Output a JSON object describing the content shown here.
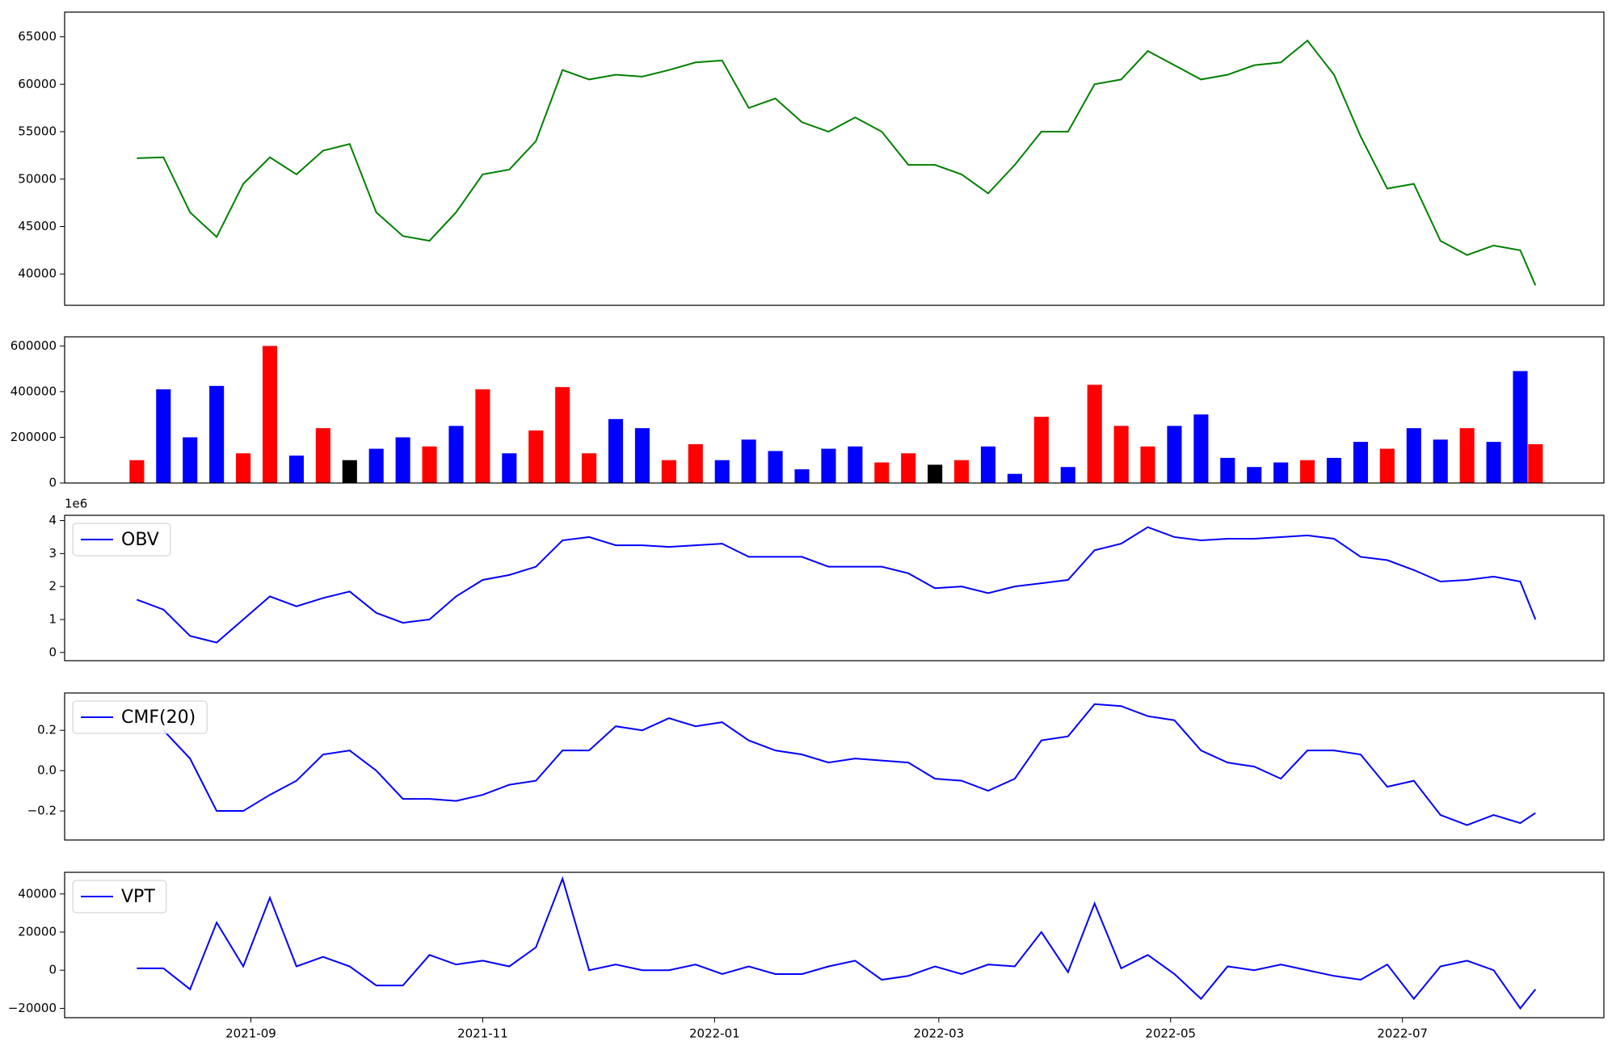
{
  "chart_data": [
    {
      "type": "line",
      "x": [
        "2021-08-02",
        "2021-08-09",
        "2021-08-16",
        "2021-08-23",
        "2021-08-30",
        "2021-09-06",
        "2021-09-13",
        "2021-09-20",
        "2021-09-27",
        "2021-10-04",
        "2021-10-11",
        "2021-10-18",
        "2021-10-25",
        "2021-11-01",
        "2021-11-08",
        "2021-11-15",
        "2021-11-22",
        "2021-11-29",
        "2021-12-06",
        "2021-12-13",
        "2021-12-20",
        "2021-12-27",
        "2022-01-03",
        "2022-01-10",
        "2022-01-17",
        "2022-01-24",
        "2022-01-31",
        "2022-02-07",
        "2022-02-14",
        "2022-02-21",
        "2022-02-28",
        "2022-03-07",
        "2022-03-14",
        "2022-03-21",
        "2022-03-28",
        "2022-04-04",
        "2022-04-11",
        "2022-04-18",
        "2022-04-25",
        "2022-05-02",
        "2022-05-09",
        "2022-05-16",
        "2022-05-23",
        "2022-05-30",
        "2022-06-06",
        "2022-06-13",
        "2022-06-20",
        "2022-06-27",
        "2022-07-04",
        "2022-07-11",
        "2022-07-18",
        "2022-07-25",
        "2022-08-01",
        "2022-08-05"
      ],
      "xlim": [
        "2021-07-14",
        "2022-08-23"
      ],
      "series": [
        {
          "color": "#008000",
          "values": [
            52200,
            52300,
            46500,
            43900,
            49500,
            52300,
            50500,
            53000,
            53700,
            46500,
            44000,
            43500,
            46500,
            50500,
            51000,
            54000,
            61500,
            60500,
            61000,
            60800,
            61500,
            62300,
            62500,
            57500,
            58500,
            56000,
            55000,
            56500,
            55000,
            51500,
            51500,
            50500,
            48500,
            51500,
            55000,
            55000,
            60000,
            60500,
            63500,
            62000,
            60500,
            61000,
            62000,
            62300,
            64600,
            61000,
            54500,
            49000,
            49500,
            43500,
            42000,
            43000,
            42500,
            38800
          ]
        }
      ],
      "ylim": [
        36700,
        67600
      ],
      "yticks": [
        40000,
        45000,
        50000,
        55000,
        60000,
        65000
      ]
    },
    {
      "type": "bar",
      "x": [
        "2021-08-02",
        "2021-08-09",
        "2021-08-16",
        "2021-08-23",
        "2021-08-30",
        "2021-09-06",
        "2021-09-13",
        "2021-09-20",
        "2021-09-27",
        "2021-10-04",
        "2021-10-11",
        "2021-10-18",
        "2021-10-25",
        "2021-11-01",
        "2021-11-08",
        "2021-11-15",
        "2021-11-22",
        "2021-11-29",
        "2021-12-06",
        "2021-12-13",
        "2021-12-20",
        "2021-12-27",
        "2022-01-03",
        "2022-01-10",
        "2022-01-17",
        "2022-01-24",
        "2022-01-31",
        "2022-02-07",
        "2022-02-14",
        "2022-02-21",
        "2022-02-28",
        "2022-03-07",
        "2022-03-14",
        "2022-03-21",
        "2022-03-28",
        "2022-04-04",
        "2022-04-11",
        "2022-04-18",
        "2022-04-25",
        "2022-05-02",
        "2022-05-09",
        "2022-05-16",
        "2022-05-23",
        "2022-05-30",
        "2022-06-06",
        "2022-06-13",
        "2022-06-20",
        "2022-06-27",
        "2022-07-04",
        "2022-07-11",
        "2022-07-18",
        "2022-07-25",
        "2022-08-01",
        "2022-08-05"
      ],
      "xlim": [
        "2021-07-14",
        "2022-08-23"
      ],
      "series": [
        {
          "values": [
            100000,
            410000,
            200000,
            425000,
            130000,
            600000,
            120000,
            240000,
            100000,
            150000,
            200000,
            160000,
            250000,
            410000,
            130000,
            230000,
            420000,
            130000,
            280000,
            240000,
            100000,
            170000,
            100000,
            190000,
            140000,
            60000,
            150000,
            160000,
            90000,
            130000,
            80000,
            100000,
            160000,
            40000,
            290000,
            70000,
            430000,
            250000,
            160000,
            250000,
            300000,
            110000,
            70000,
            90000,
            100000,
            110000,
            180000,
            150000,
            240000,
            190000,
            240000,
            180000,
            490000,
            170000
          ],
          "colors": [
            "red",
            "blue",
            "blue",
            "blue",
            "red",
            "red",
            "blue",
            "red",
            "black",
            "blue",
            "blue",
            "red",
            "blue",
            "red",
            "blue",
            "red",
            "red",
            "red",
            "blue",
            "blue",
            "red",
            "red",
            "blue",
            "blue",
            "blue",
            "blue",
            "blue",
            "blue",
            "red",
            "red",
            "black",
            "red",
            "blue",
            "blue",
            "red",
            "blue",
            "red",
            "red",
            "red",
            "blue",
            "blue",
            "blue",
            "blue",
            "blue",
            "red",
            "blue",
            "blue",
            "red",
            "blue",
            "blue",
            "red",
            "blue",
            "blue",
            "red"
          ]
        }
      ],
      "ylim": [
        0,
        640000
      ],
      "yticks": [
        0,
        200000,
        400000,
        600000
      ]
    },
    {
      "type": "line",
      "x": [
        "2021-08-02",
        "2021-08-09",
        "2021-08-16",
        "2021-08-23",
        "2021-08-30",
        "2021-09-06",
        "2021-09-13",
        "2021-09-20",
        "2021-09-27",
        "2021-10-04",
        "2021-10-11",
        "2021-10-18",
        "2021-10-25",
        "2021-11-01",
        "2021-11-08",
        "2021-11-15",
        "2021-11-22",
        "2021-11-29",
        "2021-12-06",
        "2021-12-13",
        "2021-12-20",
        "2021-12-27",
        "2022-01-03",
        "2022-01-10",
        "2022-01-17",
        "2022-01-24",
        "2022-01-31",
        "2022-02-07",
        "2022-02-14",
        "2022-02-21",
        "2022-02-28",
        "2022-03-07",
        "2022-03-14",
        "2022-03-21",
        "2022-03-28",
        "2022-04-04",
        "2022-04-11",
        "2022-04-18",
        "2022-04-25",
        "2022-05-02",
        "2022-05-09",
        "2022-05-16",
        "2022-05-23",
        "2022-05-30",
        "2022-06-06",
        "2022-06-13",
        "2022-06-20",
        "2022-06-27",
        "2022-07-04",
        "2022-07-11",
        "2022-07-18",
        "2022-07-25",
        "2022-08-01",
        "2022-08-05"
      ],
      "xlim": [
        "2021-07-14",
        "2022-08-23"
      ],
      "series": [
        {
          "name": "OBV",
          "color": "#0000ff",
          "values": [
            1600000,
            1300000,
            500000,
            300000,
            1000000,
            1700000,
            1400000,
            1650000,
            1850000,
            1200000,
            900000,
            1000000,
            1700000,
            2200000,
            2350000,
            2600000,
            3400000,
            3500000,
            3250000,
            3250000,
            3200000,
            3250000,
            3300000,
            2900000,
            2900000,
            2900000,
            2600000,
            2600000,
            2600000,
            2400000,
            1950000,
            2000000,
            1800000,
            2000000,
            2100000,
            2200000,
            3100000,
            3300000,
            3800000,
            3500000,
            3400000,
            3450000,
            3450000,
            3500000,
            3550000,
            3450000,
            2900000,
            2800000,
            2500000,
            2150000,
            2200000,
            2300000,
            2150000,
            1000000
          ]
        }
      ],
      "ylim": [
        -250000,
        4160000
      ],
      "yticks": [
        {
          "value": 0,
          "label": "0"
        },
        {
          "value": 1000000,
          "label": "1"
        },
        {
          "value": 2000000,
          "label": "2"
        },
        {
          "value": 3000000,
          "label": "3"
        },
        {
          "value": 4000000,
          "label": "4"
        }
      ],
      "y_offset_label": "1e6",
      "legend": "upper left"
    },
    {
      "type": "line",
      "x": [
        "2021-08-02",
        "2021-08-09",
        "2021-08-16",
        "2021-08-23",
        "2021-08-30",
        "2021-09-06",
        "2021-09-13",
        "2021-09-20",
        "2021-09-27",
        "2021-10-04",
        "2021-10-11",
        "2021-10-18",
        "2021-10-25",
        "2021-11-01",
        "2021-11-08",
        "2021-11-15",
        "2021-11-22",
        "2021-11-29",
        "2021-12-06",
        "2021-12-13",
        "2021-12-20",
        "2021-12-27",
        "2022-01-03",
        "2022-01-10",
        "2022-01-17",
        "2022-01-24",
        "2022-01-31",
        "2022-02-07",
        "2022-02-14",
        "2022-02-21",
        "2022-02-28",
        "2022-03-07",
        "2022-03-14",
        "2022-03-21",
        "2022-03-28",
        "2022-04-04",
        "2022-04-11",
        "2022-04-18",
        "2022-04-25",
        "2022-05-02",
        "2022-05-09",
        "2022-05-16",
        "2022-05-23",
        "2022-05-30",
        "2022-06-06",
        "2022-06-13",
        "2022-06-20",
        "2022-06-27",
        "2022-07-04",
        "2022-07-11",
        "2022-07-18",
        "2022-07-25",
        "2022-08-01",
        "2022-08-05"
      ],
      "xlim": [
        "2021-07-14",
        "2022-08-23"
      ],
      "series": [
        {
          "name": "CMF(20)",
          "color": "#0000ff",
          "values": [
            null,
            0.2,
            0.06,
            -0.2,
            -0.2,
            -0.12,
            -0.05,
            0.08,
            0.1,
            0,
            -0.14,
            -0.14,
            -0.15,
            -0.12,
            -0.07,
            -0.05,
            0.1,
            0.1,
            0.22,
            0.2,
            0.26,
            0.22,
            0.24,
            0.15,
            0.1,
            0.08,
            0.04,
            0.06,
            0.05,
            0.04,
            -0.04,
            -0.05,
            -0.1,
            -0.04,
            0.15,
            0.17,
            0.33,
            0.32,
            0.27,
            0.25,
            0.1,
            0.04,
            0.02,
            -0.04,
            0.1,
            0.1,
            0.08,
            -0.08,
            -0.05,
            -0.22,
            -0.27,
            -0.22,
            -0.26,
            -0.21
          ]
        }
      ],
      "ylim": [
        -0.344,
        0.385
      ],
      "yticks": [
        {
          "value": -0.2,
          "label": "−0.2"
        },
        {
          "value": 0,
          "label": "0.0"
        },
        0.2
      ],
      "legend": "upper left"
    },
    {
      "type": "line",
      "x": [
        "2021-08-02",
        "2021-08-09",
        "2021-08-16",
        "2021-08-23",
        "2021-08-30",
        "2021-09-06",
        "2021-09-13",
        "2021-09-20",
        "2021-09-27",
        "2021-10-04",
        "2021-10-11",
        "2021-10-18",
        "2021-10-25",
        "2021-11-01",
        "2021-11-08",
        "2021-11-15",
        "2021-11-22",
        "2021-11-29",
        "2021-12-06",
        "2021-12-13",
        "2021-12-20",
        "2021-12-27",
        "2022-01-03",
        "2022-01-10",
        "2022-01-17",
        "2022-01-24",
        "2022-01-31",
        "2022-02-07",
        "2022-02-14",
        "2022-02-21",
        "2022-02-28",
        "2022-03-07",
        "2022-03-14",
        "2022-03-21",
        "2022-03-28",
        "2022-04-04",
        "2022-04-11",
        "2022-04-18",
        "2022-04-25",
        "2022-05-02",
        "2022-05-09",
        "2022-05-16",
        "2022-05-23",
        "2022-05-30",
        "2022-06-06",
        "2022-06-13",
        "2022-06-20",
        "2022-06-27",
        "2022-07-04",
        "2022-07-11",
        "2022-07-18",
        "2022-07-25",
        "2022-08-01",
        "2022-08-05"
      ],
      "xlim": [
        "2021-07-14",
        "2022-08-23"
      ],
      "xticks": [
        {
          "value": "2021-09-01",
          "label": "2021-09"
        },
        {
          "value": "2021-11-01",
          "label": "2021-11"
        },
        {
          "value": "2022-01-01",
          "label": "2022-01"
        },
        {
          "value": "2022-03-01",
          "label": "2022-03"
        },
        {
          "value": "2022-05-01",
          "label": "2022-05"
        },
        {
          "value": "2022-07-01",
          "label": "2022-07"
        }
      ],
      "series": [
        {
          "name": "VPT",
          "color": "#0000ff",
          "values": [
            1000,
            1000,
            -10000,
            25000,
            2000,
            38000,
            2000,
            7000,
            2000,
            -8000,
            -8000,
            8000,
            3000,
            5000,
            2000,
            12000,
            48000,
            0,
            3000,
            0,
            0,
            3000,
            -2000,
            2000,
            -2000,
            -2000,
            2000,
            5000,
            -5000,
            -3000,
            2000,
            -2000,
            3000,
            2000,
            20000,
            -1000,
            35000,
            1000,
            8000,
            -2000,
            -15000,
            2000,
            0,
            3000,
            0,
            -3000,
            -5000,
            3000,
            -15000,
            2000,
            5000,
            0,
            -20000,
            -10000
          ]
        }
      ],
      "ylim": [
        -24900,
        51350
      ],
      "yticks": [
        {
          "value": -20000,
          "label": "−20000"
        },
        0,
        20000,
        40000
      ],
      "legend": "upper left"
    }
  ]
}
